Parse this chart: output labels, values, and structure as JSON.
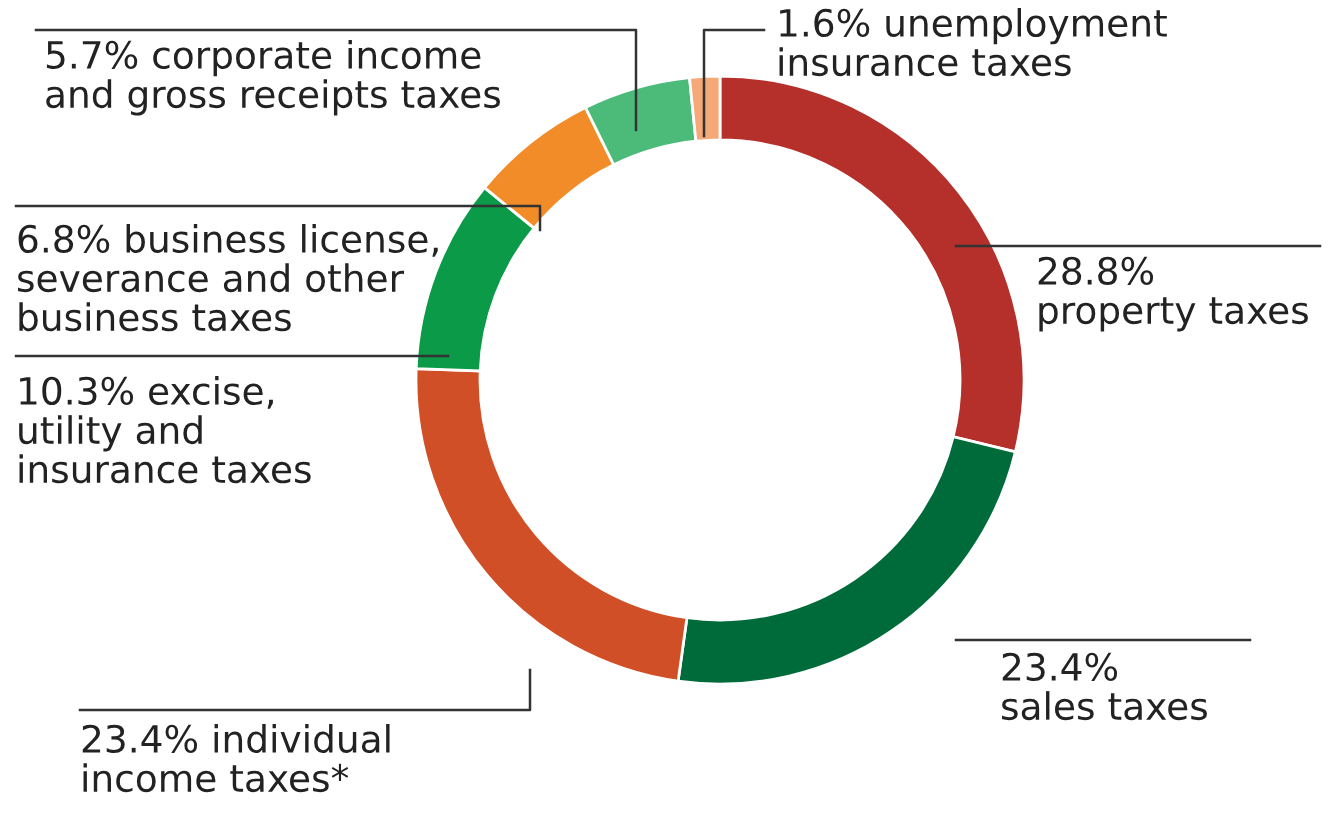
{
  "chart_data": {
    "type": "donut",
    "categories": [
      "28.8%\nproperty taxes",
      "23.4%\nsales taxes",
      "23.4% individual\nincome taxes*",
      "10.3% excise,\nutility and\ninsurance taxes",
      "6.8% business license,\nseverance and other\nbusiness taxes",
      "5.7% corporate income\nand gross receipts taxes",
      "1.6% unemployment\ninsurance taxes"
    ],
    "values": [
      28.8,
      23.4,
      23.4,
      10.3,
      6.8,
      5.7,
      1.6
    ],
    "colors": [
      "#b5302a",
      "#006b3a",
      "#d14f26",
      "#0a9a48",
      "#f28c28",
      "#4cbb7a",
      "#f5a878"
    ]
  }
}
